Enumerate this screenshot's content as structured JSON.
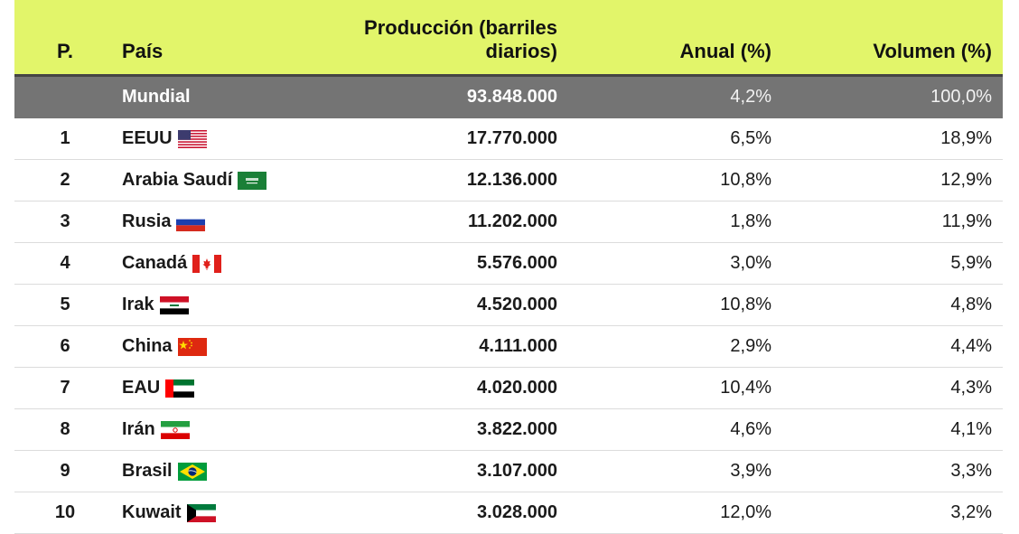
{
  "chart_data": {
    "type": "table",
    "columns": [
      "P.",
      "País",
      "Producción (barriles diarios)",
      "Anual (%)",
      "Volumen (%)"
    ],
    "world": {
      "label": "Mundial",
      "production": "93.848.000",
      "annual": "4,2%",
      "volume": "100,0%"
    },
    "rows": [
      {
        "rank": "1",
        "country": "EEUU",
        "flag": "us-flag",
        "production": "17.770.000",
        "annual": "6,5%",
        "volume": "18,9%"
      },
      {
        "rank": "2",
        "country": "Arabia Saudí",
        "flag": "sa-flag",
        "production": "12.136.000",
        "annual": "10,8%",
        "volume": "12,9%"
      },
      {
        "rank": "3",
        "country": "Rusia",
        "flag": "ru-flag",
        "production": "11.202.000",
        "annual": "1,8%",
        "volume": "11,9%"
      },
      {
        "rank": "4",
        "country": "Canadá",
        "flag": "ca-flag",
        "production": "5.576.000",
        "annual": "3,0%",
        "volume": "5,9%"
      },
      {
        "rank": "5",
        "country": "Irak",
        "flag": "iq-flag",
        "production": "4.520.000",
        "annual": "10,8%",
        "volume": "4,8%"
      },
      {
        "rank": "6",
        "country": "China",
        "flag": "cn-flag",
        "production": "4.111.000",
        "annual": "2,9%",
        "volume": "4,4%"
      },
      {
        "rank": "7",
        "country": "EAU",
        "flag": "ae-flag",
        "production": "4.020.000",
        "annual": "10,4%",
        "volume": "4,3%"
      },
      {
        "rank": "8",
        "country": "Irán",
        "flag": "ir-flag",
        "production": "3.822.000",
        "annual": "4,6%",
        "volume": "4,1%"
      },
      {
        "rank": "9",
        "country": "Brasil",
        "flag": "br-flag",
        "production": "3.107.000",
        "annual": "3,9%",
        "volume": "3,3%"
      },
      {
        "rank": "10",
        "country": "Kuwait",
        "flag": "kw-flag",
        "production": "3.028.000",
        "annual": "12,0%",
        "volume": "3,2%"
      }
    ]
  },
  "colors": {
    "header_bg": "#e2f56a",
    "world_row_bg": "#747474",
    "row_divider": "#dcdcdc"
  }
}
